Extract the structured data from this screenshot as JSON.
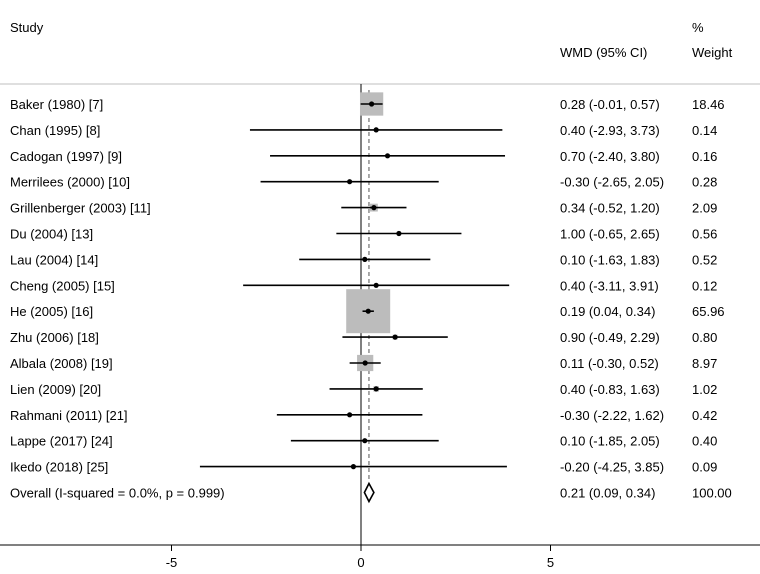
{
  "chart_data": {
    "type": "forest",
    "headers": {
      "study": "Study",
      "effect": "WMD (95% CI)",
      "weight_line1": "%",
      "weight_line2": "Weight"
    },
    "xaxis": {
      "min": -9.5,
      "max": 10.5,
      "ticks": [
        -5,
        0,
        5
      ],
      "tick_labels": [
        "-5",
        "0",
        "5"
      ]
    },
    "studies": [
      {
        "label": "Baker (1980) [7]",
        "est": 0.28,
        "lo": -0.01,
        "hi": 0.57,
        "ci_text": "0.28 (-0.01, 0.57)",
        "weight": 18.46,
        "weight_text": "18.46"
      },
      {
        "label": "Chan (1995) [8]",
        "est": 0.4,
        "lo": -2.93,
        "hi": 3.73,
        "ci_text": "0.40 (-2.93, 3.73)",
        "weight": 0.14,
        "weight_text": "0.14"
      },
      {
        "label": "Cadogan (1997) [9]",
        "est": 0.7,
        "lo": -2.4,
        "hi": 3.8,
        "ci_text": "0.70 (-2.40, 3.80)",
        "weight": 0.16,
        "weight_text": "0.16"
      },
      {
        "label": "Merrilees (2000) [10]",
        "est": -0.3,
        "lo": -2.65,
        "hi": 2.05,
        "ci_text": "-0.30 (-2.65, 2.05)",
        "weight": 0.28,
        "weight_text": "0.28"
      },
      {
        "label": "Grillenberger (2003) [11]",
        "est": 0.34,
        "lo": -0.52,
        "hi": 1.2,
        "ci_text": "0.34 (-0.52, 1.20)",
        "weight": 2.09,
        "weight_text": "2.09"
      },
      {
        "label": "Du (2004) [13]",
        "est": 1.0,
        "lo": -0.65,
        "hi": 2.65,
        "ci_text": "1.00 (-0.65, 2.65)",
        "weight": 0.56,
        "weight_text": "0.56"
      },
      {
        "label": "Lau (2004) [14]",
        "est": 0.1,
        "lo": -1.63,
        "hi": 1.83,
        "ci_text": "0.10 (-1.63, 1.83)",
        "weight": 0.52,
        "weight_text": "0.52"
      },
      {
        "label": "Cheng (2005) [15]",
        "est": 0.4,
        "lo": -3.11,
        "hi": 3.91,
        "ci_text": "0.40 (-3.11, 3.91)",
        "weight": 0.12,
        "weight_text": "0.12"
      },
      {
        "label": "He (2005) [16]",
        "est": 0.19,
        "lo": 0.04,
        "hi": 0.34,
        "ci_text": "0.19 (0.04, 0.34)",
        "weight": 65.96,
        "weight_text": "65.96"
      },
      {
        "label": "Zhu (2006) [18]",
        "est": 0.9,
        "lo": -0.49,
        "hi": 2.29,
        "ci_text": "0.90 (-0.49, 2.29)",
        "weight": 0.8,
        "weight_text": "0.80"
      },
      {
        "label": "Albala (2008) [19]",
        "est": 0.11,
        "lo": -0.3,
        "hi": 0.52,
        "ci_text": "0.11 (-0.30, 0.52)",
        "weight": 8.97,
        "weight_text": "8.97"
      },
      {
        "label": "Lien (2009) [20]",
        "est": 0.4,
        "lo": -0.83,
        "hi": 1.63,
        "ci_text": "0.40 (-0.83, 1.63)",
        "weight": 1.02,
        "weight_text": "1.02"
      },
      {
        "label": "Rahmani (2011) [21]",
        "est": -0.3,
        "lo": -2.22,
        "hi": 1.62,
        "ci_text": "-0.30 (-2.22, 1.62)",
        "weight": 0.42,
        "weight_text": "0.42"
      },
      {
        "label": "Lappe (2017) [24]",
        "est": 0.1,
        "lo": -1.85,
        "hi": 2.05,
        "ci_text": "0.10 (-1.85, 2.05)",
        "weight": 0.4,
        "weight_text": "0.40"
      },
      {
        "label": "Ikedo (2018) [25]",
        "est": -0.2,
        "lo": -4.25,
        "hi": 3.85,
        "ci_text": "-0.20 (-4.25, 3.85)",
        "weight": 0.09,
        "weight_text": "0.09"
      }
    ],
    "overall": {
      "label": "Overall  (I-squared = 0.0%, p = 0.999)",
      "est": 0.21,
      "lo": 0.09,
      "hi": 0.34,
      "ci_text": "0.21 (0.09, 0.34)",
      "weight": 100.0,
      "weight_text": "100.00"
    },
    "colors": {
      "box": "#bcbcbc",
      "line": "#000000",
      "separator": "#bfbfbf",
      "dashed": "#555555"
    }
  }
}
